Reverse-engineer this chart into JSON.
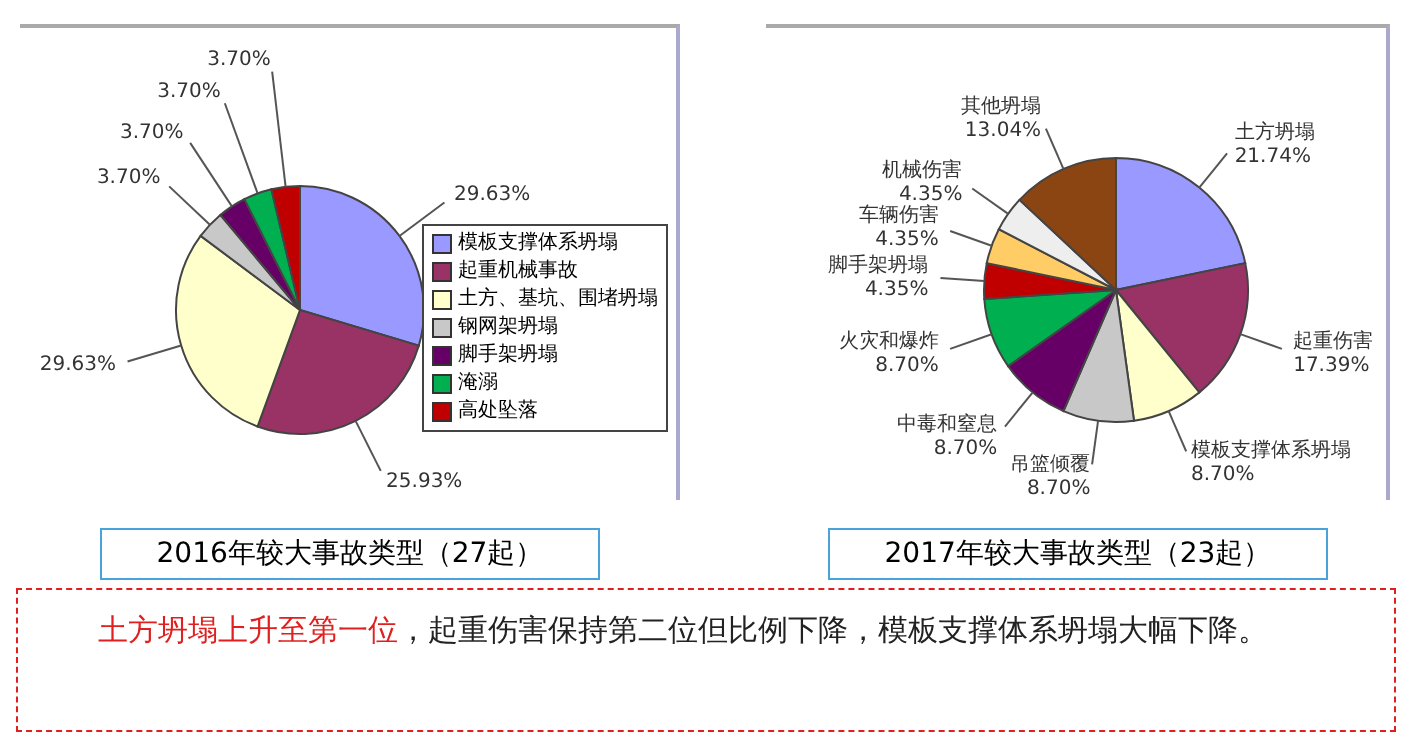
{
  "chart_data": [
    {
      "type": "pie",
      "title": "2016年较大事故类型（27起）",
      "categories": [
        "模板支撑体系坍塌",
        "起重机械事故",
        "土方、基坑、围堵坍塌",
        "钢网架坍塌",
        "脚手架坍塌",
        "淹溺",
        "高处坠落"
      ],
      "values": [
        29.63,
        25.93,
        29.63,
        3.7,
        3.7,
        3.7,
        3.7
      ],
      "value_labels": [
        "29.63%",
        "25.93%",
        "29.63%",
        "3.70%",
        "3.70%",
        "3.70%",
        "3.70%"
      ],
      "colors": [
        "#9999ff",
        "#993366",
        "#ffffcc",
        "#c8c8c8",
        "#660066",
        "#00b050",
        "#c00000"
      ],
      "legend": "right"
    },
    {
      "type": "pie",
      "title": "2017年较大事故类型（23起）",
      "categories": [
        "土方坍塌",
        "起重伤害",
        "模板支撑体系坍塌",
        "吊篮倾覆",
        "中毒和窒息",
        "火灾和爆炸",
        "脚手架坍塌",
        "车辆伤害",
        "机械伤害",
        "其他坍塌"
      ],
      "values": [
        21.74,
        17.39,
        8.7,
        8.7,
        8.7,
        8.7,
        4.35,
        4.35,
        4.35,
        13.04
      ],
      "value_labels": [
        "21.74%",
        "17.39%",
        "8.70%",
        "8.70%",
        "8.70%",
        "8.70%",
        "4.35%",
        "4.35%",
        "4.35%",
        "13.04%"
      ],
      "colors": [
        "#9999ff",
        "#993366",
        "#ffffcc",
        "#c8c8c8",
        "#660066",
        "#00b050",
        "#c00000",
        "#ffcc66",
        "#eeeeee",
        "#8b4513"
      ],
      "legend": false
    },
    {
      "type": "other",
      "annotations": [
        "土方坍塌上升至第一位",
        "，起重伤害保持第二位但比例下降，模板支撑体系坍塌大幅下降。"
      ]
    }
  ]
}
